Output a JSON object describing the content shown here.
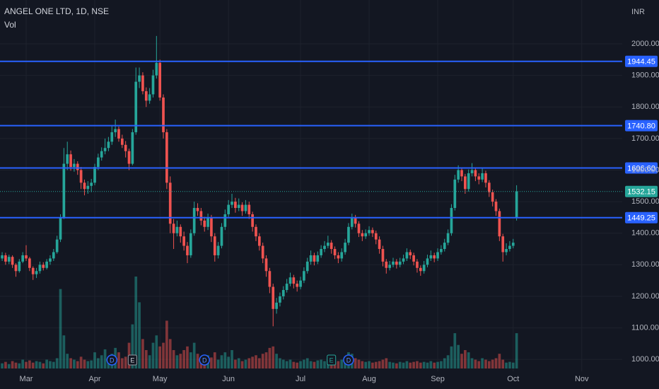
{
  "chart_data": {
    "type": "candlestick",
    "title": "ANGEL ONE LTD, 1D, NSE",
    "subtitle": "Vol",
    "currency": "INR",
    "up_color": "#26a69a",
    "down_color": "#ef5350",
    "level_color": "#2962ff",
    "grid": true,
    "ylim": [
      962.3,
      2139
    ],
    "xlim": [
      0.37,
      181.8
    ],
    "yticks": [
      {
        "value": 1000,
        "label": "1000.00"
      },
      {
        "value": 1100,
        "label": "1100.00"
      },
      {
        "value": 1200,
        "label": "1200.00"
      },
      {
        "value": 1300,
        "label": "1300.00"
      },
      {
        "value": 1400,
        "label": "1400.00"
      },
      {
        "value": 1500,
        "label": "1500.00"
      },
      {
        "value": 1600,
        "label": "1600.00"
      },
      {
        "value": 1700,
        "label": "1700.00"
      },
      {
        "value": 1800,
        "label": "1800.00"
      },
      {
        "value": 1900,
        "label": "1900.00"
      },
      {
        "value": 2000,
        "label": "2000.00"
      }
    ],
    "xticks": [
      {
        "value": 8,
        "label": "Mar"
      },
      {
        "value": 28,
        "label": "Apr"
      },
      {
        "value": 47,
        "label": "May"
      },
      {
        "value": 67,
        "label": "Jun"
      },
      {
        "value": 88,
        "label": "Jul"
      },
      {
        "value": 108,
        "label": "Aug"
      },
      {
        "value": 128,
        "label": "Sep"
      },
      {
        "value": 150,
        "label": "Oct"
      },
      {
        "value": 170,
        "label": "Nov"
      }
    ],
    "levels": [
      {
        "value": 1944.45,
        "label": "1944.45"
      },
      {
        "value": 1740.8,
        "label": "1740.80"
      },
      {
        "value": 1606.6,
        "label": "1606.60"
      },
      {
        "value": 1449.25,
        "label": "1449.25"
      }
    ],
    "last_price": {
      "value": 1532.15,
      "label": "1532.15"
    },
    "events": [
      {
        "label": "D",
        "x": 33
      },
      {
        "label": "E",
        "x": 39
      },
      {
        "label": "D",
        "x": 60
      },
      {
        "label": "E",
        "x": 97
      },
      {
        "label": "D",
        "x": 102
      }
    ],
    "ohlc": [
      [
        1310,
        1335,
        1300,
        1320
      ],
      [
        1320,
        1340,
        1312,
        1330
      ],
      [
        1330,
        1338,
        1300,
        1310
      ],
      [
        1310,
        1332,
        1302,
        1325
      ],
      [
        1325,
        1330,
        1290,
        1300
      ],
      [
        1300,
        1305,
        1262,
        1280
      ],
      [
        1280,
        1318,
        1275,
        1310
      ],
      [
        1310,
        1340,
        1305,
        1330
      ],
      [
        1330,
        1362,
        1312,
        1320
      ],
      [
        1320,
        1325,
        1280,
        1290
      ],
      [
        1290,
        1295,
        1252,
        1270
      ],
      [
        1270,
        1290,
        1258,
        1280
      ],
      [
        1280,
        1310,
        1272,
        1300
      ],
      [
        1300,
        1308,
        1282,
        1290
      ],
      [
        1290,
        1318,
        1285,
        1310
      ],
      [
        1310,
        1330,
        1300,
        1320
      ],
      [
        1320,
        1350,
        1312,
        1340
      ],
      [
        1340,
        1392,
        1335,
        1380
      ],
      [
        1380,
        1460,
        1372,
        1450
      ],
      [
        1450,
        1670,
        1445,
        1620
      ],
      [
        1620,
        1690,
        1600,
        1650
      ],
      [
        1650,
        1662,
        1598,
        1610
      ],
      [
        1610,
        1635,
        1595,
        1620
      ],
      [
        1620,
        1628,
        1585,
        1600
      ],
      [
        1600,
        1610,
        1540,
        1560
      ],
      [
        1560,
        1570,
        1520,
        1540
      ],
      [
        1540,
        1565,
        1525,
        1550
      ],
      [
        1550,
        1572,
        1530,
        1560
      ],
      [
        1560,
        1620,
        1552,
        1610
      ],
      [
        1610,
        1652,
        1600,
        1640
      ],
      [
        1640,
        1672,
        1630,
        1660
      ],
      [
        1660,
        1700,
        1650,
        1670
      ],
      [
        1670,
        1705,
        1660,
        1690
      ],
      [
        1690,
        1742,
        1680,
        1720
      ],
      [
        1720,
        1760,
        1705,
        1730
      ],
      [
        1730,
        1738,
        1690,
        1700
      ],
      [
        1700,
        1712,
        1670,
        1680
      ],
      [
        1680,
        1692,
        1640,
        1660
      ],
      [
        1660,
        1668,
        1600,
        1620
      ],
      [
        1620,
        1730,
        1615,
        1720
      ],
      [
        1720,
        1925,
        1712,
        1880
      ],
      [
        1880,
        1925,
        1860,
        1900
      ],
      [
        1900,
        1910,
        1840,
        1850
      ],
      [
        1850,
        1862,
        1800,
        1820
      ],
      [
        1820,
        1860,
        1810,
        1840
      ],
      [
        1840,
        1918,
        1830,
        1900
      ],
      [
        1900,
        2025,
        1890,
        1940
      ],
      [
        1940,
        1950,
        1820,
        1830
      ],
      [
        1830,
        1840,
        1700,
        1720
      ],
      [
        1720,
        1730,
        1540,
        1560
      ],
      [
        1560,
        1580,
        1400,
        1430
      ],
      [
        1430,
        1445,
        1350,
        1400
      ],
      [
        1400,
        1440,
        1390,
        1420
      ],
      [
        1420,
        1428,
        1370,
        1390
      ],
      [
        1390,
        1405,
        1345,
        1360
      ],
      [
        1360,
        1372,
        1305,
        1330
      ],
      [
        1330,
        1412,
        1322,
        1400
      ],
      [
        1400,
        1500,
        1392,
        1480
      ],
      [
        1480,
        1495,
        1455,
        1470
      ],
      [
        1470,
        1480,
        1425,
        1440
      ],
      [
        1440,
        1452,
        1405,
        1420
      ],
      [
        1420,
        1462,
        1410,
        1450
      ],
      [
        1450,
        1458,
        1372,
        1390
      ],
      [
        1390,
        1400,
        1310,
        1330
      ],
      [
        1330,
        1372,
        1320,
        1360
      ],
      [
        1360,
        1432,
        1352,
        1420
      ],
      [
        1420,
        1475,
        1410,
        1460
      ],
      [
        1460,
        1505,
        1452,
        1490
      ],
      [
        1490,
        1525,
        1480,
        1500
      ],
      [
        1500,
        1512,
        1465,
        1480
      ],
      [
        1480,
        1510,
        1470,
        1490
      ],
      [
        1490,
        1498,
        1455,
        1470
      ],
      [
        1470,
        1505,
        1462,
        1490
      ],
      [
        1490,
        1500,
        1445,
        1460
      ],
      [
        1460,
        1468,
        1405,
        1420
      ],
      [
        1420,
        1428,
        1375,
        1390
      ],
      [
        1390,
        1400,
        1345,
        1360
      ],
      [
        1360,
        1370,
        1305,
        1320
      ],
      [
        1320,
        1330,
        1262,
        1280
      ],
      [
        1280,
        1290,
        1210,
        1230
      ],
      [
        1230,
        1240,
        1105,
        1160
      ],
      [
        1160,
        1195,
        1145,
        1180
      ],
      [
        1180,
        1212,
        1168,
        1200
      ],
      [
        1200,
        1232,
        1190,
        1220
      ],
      [
        1220,
        1255,
        1212,
        1240
      ],
      [
        1240,
        1275,
        1232,
        1260
      ],
      [
        1260,
        1268,
        1225,
        1240
      ],
      [
        1240,
        1250,
        1215,
        1230
      ],
      [
        1230,
        1262,
        1222,
        1250
      ],
      [
        1250,
        1292,
        1242,
        1280
      ],
      [
        1280,
        1322,
        1272,
        1310
      ],
      [
        1310,
        1345,
        1300,
        1330
      ],
      [
        1330,
        1338,
        1298,
        1310
      ],
      [
        1310,
        1342,
        1302,
        1330
      ],
      [
        1330,
        1362,
        1322,
        1350
      ],
      [
        1350,
        1375,
        1340,
        1360
      ],
      [
        1360,
        1392,
        1352,
        1370
      ],
      [
        1370,
        1378,
        1335,
        1350
      ],
      [
        1350,
        1358,
        1318,
        1330
      ],
      [
        1330,
        1340,
        1305,
        1320
      ],
      [
        1320,
        1352,
        1310,
        1340
      ],
      [
        1340,
        1382,
        1332,
        1370
      ],
      [
        1370,
        1432,
        1362,
        1420
      ],
      [
        1420,
        1462,
        1412,
        1450
      ],
      [
        1450,
        1458,
        1418,
        1430
      ],
      [
        1430,
        1438,
        1388,
        1400
      ],
      [
        1400,
        1410,
        1375,
        1390
      ],
      [
        1390,
        1412,
        1382,
        1400
      ],
      [
        1400,
        1422,
        1392,
        1410
      ],
      [
        1410,
        1418,
        1388,
        1400
      ],
      [
        1400,
        1408,
        1365,
        1380
      ],
      [
        1380,
        1390,
        1335,
        1350
      ],
      [
        1350,
        1360,
        1295,
        1310
      ],
      [
        1310,
        1318,
        1272,
        1290
      ],
      [
        1290,
        1312,
        1282,
        1300
      ],
      [
        1300,
        1322,
        1292,
        1310
      ],
      [
        1310,
        1318,
        1288,
        1300
      ],
      [
        1300,
        1322,
        1292,
        1310
      ],
      [
        1310,
        1332,
        1302,
        1320
      ],
      [
        1320,
        1352,
        1312,
        1340
      ],
      [
        1340,
        1348,
        1318,
        1330
      ],
      [
        1330,
        1338,
        1298,
        1310
      ],
      [
        1310,
        1318,
        1275,
        1290
      ],
      [
        1290,
        1298,
        1265,
        1280
      ],
      [
        1280,
        1312,
        1272,
        1300
      ],
      [
        1300,
        1332,
        1292,
        1320
      ],
      [
        1320,
        1345,
        1312,
        1330
      ],
      [
        1330,
        1338,
        1308,
        1320
      ],
      [
        1320,
        1352,
        1312,
        1340
      ],
      [
        1340,
        1362,
        1332,
        1350
      ],
      [
        1350,
        1382,
        1342,
        1370
      ],
      [
        1370,
        1412,
        1362,
        1400
      ],
      [
        1400,
        1492,
        1392,
        1480
      ],
      [
        1480,
        1585,
        1472,
        1570
      ],
      [
        1570,
        1615,
        1560,
        1600
      ],
      [
        1600,
        1608,
        1565,
        1580
      ],
      [
        1580,
        1588,
        1525,
        1540
      ],
      [
        1540,
        1602,
        1532,
        1590
      ],
      [
        1590,
        1622,
        1580,
        1600
      ],
      [
        1600,
        1608,
        1565,
        1580
      ],
      [
        1580,
        1590,
        1555,
        1570
      ],
      [
        1570,
        1605,
        1562,
        1590
      ],
      [
        1590,
        1598,
        1545,
        1560
      ],
      [
        1560,
        1568,
        1515,
        1530
      ],
      [
        1530,
        1538,
        1485,
        1500
      ],
      [
        1500,
        1508,
        1455,
        1470
      ],
      [
        1470,
        1478,
        1375,
        1390
      ],
      [
        1390,
        1398,
        1310,
        1340
      ],
      [
        1340,
        1368,
        1330,
        1350
      ],
      [
        1350,
        1375,
        1342,
        1360
      ],
      [
        1360,
        1382,
        1352,
        1370
      ],
      [
        1450,
        1552,
        1440,
        1532.15
      ]
    ],
    "volume": [
      8,
      7,
      9,
      6,
      10,
      8,
      7,
      12,
      9,
      11,
      8,
      10,
      9,
      7,
      12,
      10,
      9,
      14,
      108,
      45,
      20,
      14,
      12,
      10,
      16,
      12,
      10,
      11,
      22,
      14,
      18,
      26,
      15,
      20,
      28,
      22,
      14,
      16,
      35,
      60,
      125,
      90,
      40,
      25,
      18,
      35,
      45,
      30,
      35,
      65,
      40,
      25,
      18,
      20,
      25,
      30,
      22,
      35,
      20,
      14,
      12,
      18,
      15,
      22,
      12,
      18,
      22,
      16,
      25,
      12,
      14,
      10,
      12,
      14,
      16,
      18,
      14,
      20,
      22,
      28,
      30,
      20,
      14,
      12,
      10,
      12,
      9,
      8,
      10,
      12,
      14,
      10,
      9,
      11,
      12,
      10,
      12,
      9,
      8,
      10,
      12,
      16,
      22,
      20,
      14,
      12,
      10,
      9,
      10,
      8,
      9,
      10,
      12,
      14,
      9,
      8,
      7,
      9,
      8,
      10,
      8,
      9,
      10,
      8,
      9,
      8,
      10,
      8,
      9,
      10,
      14,
      18,
      30,
      48,
      32,
      20,
      25,
      22,
      14,
      12,
      10,
      14,
      12,
      10,
      12,
      14,
      20,
      12,
      8,
      9,
      8,
      48
    ]
  }
}
